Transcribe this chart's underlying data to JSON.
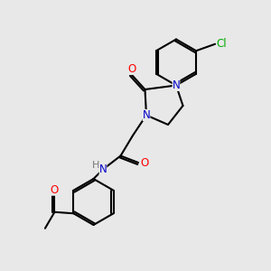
{
  "bg_color": "#e8e8e8",
  "bond_color": "#000000",
  "line_width": 1.5,
  "atom_colors": {
    "N": "#0000cc",
    "O": "#ff0000",
    "Cl": "#00aa00",
    "H": "#777777"
  },
  "font_size": 8.5
}
